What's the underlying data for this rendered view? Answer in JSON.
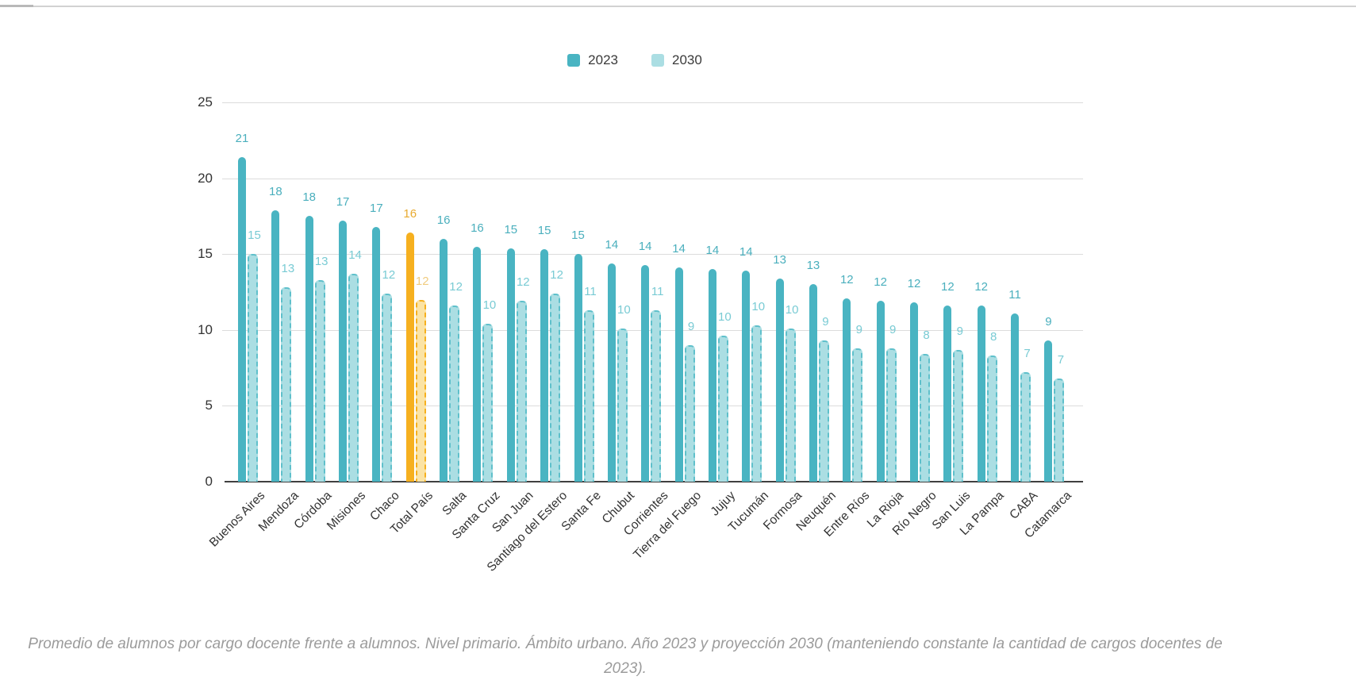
{
  "legend": {
    "items": [
      {
        "label": "2023"
      },
      {
        "label": "2030"
      }
    ]
  },
  "chart_data": {
    "type": "bar",
    "title": "",
    "xlabel": "",
    "ylabel": "",
    "ylim": [
      0,
      25
    ],
    "yticks": [
      0,
      5,
      10,
      15,
      20,
      25
    ],
    "grid": true,
    "legend_position": "top-center",
    "highlight_category": "Total País",
    "categories": [
      "Buenos Aires",
      "Mendoza",
      "Córdoba",
      "Misiones",
      "Chaco",
      "Total País",
      "Salta",
      "Santa Cruz",
      "San Juan",
      "Santiago del Estero",
      "Santa Fe",
      "Chubut",
      "Corrientes",
      "Tierra del Fuego",
      "Jujuy",
      "Tucumán",
      "Formosa",
      "Neuquén",
      "Entre Ríos",
      "La Rioja",
      "Río Negro",
      "San Luis",
      "La Pampa",
      "CABA",
      "Catamarca"
    ],
    "series": [
      {
        "name": "2023",
        "labels": [
          21,
          18,
          18,
          17,
          17,
          16,
          16,
          16,
          15,
          15,
          15,
          14,
          14,
          14,
          14,
          14,
          13,
          13,
          12,
          12,
          12,
          12,
          12,
          11,
          9
        ],
        "values": [
          21.4,
          17.9,
          17.5,
          17.2,
          16.8,
          16.4,
          16.0,
          15.5,
          15.4,
          15.3,
          15.0,
          14.4,
          14.3,
          14.1,
          14.0,
          13.9,
          13.4,
          13.0,
          12.1,
          11.9,
          11.8,
          11.6,
          11.6,
          11.1,
          9.3
        ]
      },
      {
        "name": "2030",
        "labels": [
          15,
          13,
          13,
          14,
          12,
          12,
          12,
          10,
          12,
          12,
          11,
          10,
          11,
          9,
          10,
          10,
          10,
          9,
          9,
          9,
          8,
          9,
          8,
          7,
          7
        ],
        "values": [
          15.0,
          12.8,
          13.3,
          13.7,
          12.4,
          12.0,
          11.6,
          10.4,
          11.9,
          12.4,
          11.3,
          10.1,
          11.3,
          9.0,
          9.6,
          10.3,
          10.1,
          9.3,
          8.8,
          8.8,
          8.4,
          8.7,
          8.3,
          7.2,
          6.8
        ]
      }
    ],
    "colors": {
      "series_2023": "#49b4c2",
      "series_2030_fill": "#abdee3",
      "series_2030_border": "#5fc0cb",
      "highlight_2023": "#f6b01f",
      "highlight_2030_fill": "#fbe3a4",
      "highlight_2030_border": "#f6b01f",
      "label_2023": "#4aafbd",
      "label_2030": "#79cbd4",
      "highlight_label_2023": "#e8ab31",
      "highlight_label_2030": "#f0cc80"
    }
  },
  "caption": "Promedio de alumnos por cargo docente frente a alumnos. Nivel primario. Ámbito urbano. Año 2023 y proyección 2030 (manteniendo constante la cantidad de cargos docentes de 2023)."
}
